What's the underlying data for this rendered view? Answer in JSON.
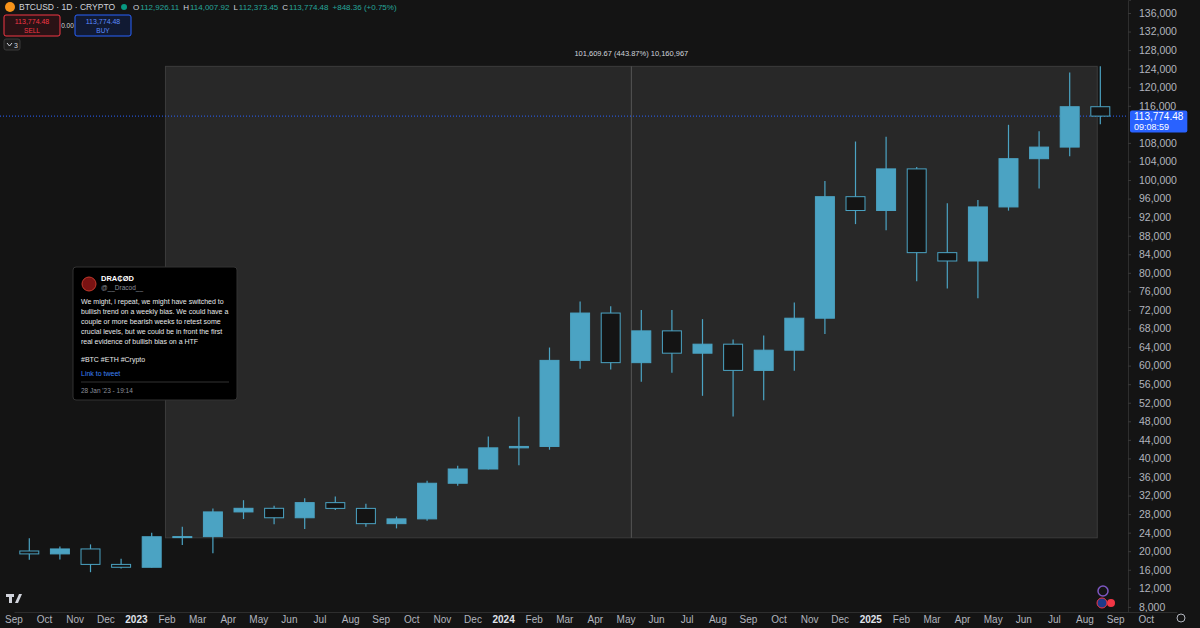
{
  "chart_data": {
    "type": "candlestick",
    "title": "BTCUSD · 1D · CRYPTO",
    "color": "#4ba3c3",
    "grid": false,
    "categories": [
      "Sep",
      "Oct",
      "Nov",
      "Dec",
      "2023",
      "Feb",
      "Mar",
      "Apr",
      "May",
      "Jun",
      "Jul",
      "Aug",
      "Sep",
      "Oct",
      "Nov",
      "Dec",
      "2024",
      "Feb",
      "Mar",
      "Apr",
      "May",
      "Jun",
      "Jul",
      "Aug",
      "Sep",
      "Oct",
      "Nov",
      "Dec",
      "2025",
      "Feb",
      "Mar",
      "Apr",
      "May",
      "Jun",
      "Jul",
      "Aug",
      "Sep",
      "Oct"
    ],
    "open": [
      20050,
      19420,
      20490,
      17160,
      16540,
      23120,
      23150,
      28470,
      29250,
      27210,
      30470,
      29230,
      25940,
      26970,
      34650,
      37720,
      42280,
      42580,
      61130,
      71330,
      60640,
      67490,
      62680,
      64620,
      58970,
      63330,
      70220,
      96410,
      93430,
      102400,
      84350,
      82550,
      94200,
      104600,
      107100,
      115800,
      null,
      null
    ],
    "high": [
      22800,
      20990,
      21470,
      18390,
      23960,
      25250,
      29190,
      31000,
      29820,
      31390,
      31810,
      30230,
      27480,
      35200,
      38430,
      44700,
      48970,
      63900,
      73800,
      72800,
      71980,
      71970,
      70020,
      65630,
      66500,
      73600,
      99800,
      108300,
      109350,
      102800,
      95000,
      95700,
      111900,
      110500,
      123200,
      124500.67,
      null,
      null
    ],
    "low": [
      18150,
      18190,
      15480,
      16260,
      16500,
      21350,
      19550,
      26940,
      25810,
      24800,
      28860,
      25300,
      24920,
      26560,
      34100,
      37620,
      38550,
      41880,
      59320,
      59190,
      56550,
      58440,
      53490,
      49050,
      52550,
      58870,
      66800,
      90500,
      89200,
      78200,
      76600,
      74500,
      93400,
      98200,
      105100,
      112000,
      null,
      null
    ],
    "close": [
      19420,
      20490,
      17160,
      16540,
      23120,
      23150,
      28470,
      29250,
      27210,
      30470,
      29230,
      25940,
      26970,
      34650,
      37720,
      42280,
      42580,
      61130,
      71330,
      60640,
      67490,
      62680,
      64620,
      58970,
      63330,
      70220,
      96410,
      93430,
      102400,
      84350,
      82550,
      94200,
      104600,
      107100,
      115800,
      113774.48,
      null,
      null
    ],
    "ylim": [
      6900,
      138800
    ],
    "yticks": [
      {
        "value": 8000,
        "label": "8,000"
      },
      {
        "value": 12000,
        "label": "12,000"
      },
      {
        "value": 16000,
        "label": "16,000"
      },
      {
        "value": 20000,
        "label": "20,000"
      },
      {
        "value": 24000,
        "label": "24,000"
      },
      {
        "value": 28000,
        "label": "28,000"
      },
      {
        "value": 32000,
        "label": "32,000"
      },
      {
        "value": 36000,
        "label": "36,000"
      },
      {
        "value": 40000,
        "label": "40,000"
      },
      {
        "value": 44000,
        "label": "44,000"
      },
      {
        "value": 48000,
        "label": "48,000"
      },
      {
        "value": 52000,
        "label": "52,000"
      },
      {
        "value": 56000,
        "label": "56,000"
      },
      {
        "value": 60000,
        "label": "60,000"
      },
      {
        "value": 64000,
        "label": "64,000"
      },
      {
        "value": 68000,
        "label": "68,000"
      },
      {
        "value": 72000,
        "label": "72,000"
      },
      {
        "value": 76000,
        "label": "76,000"
      },
      {
        "value": 80000,
        "label": "80,000"
      },
      {
        "value": 84000,
        "label": "84,000"
      },
      {
        "value": 88000,
        "label": "88,000"
      },
      {
        "value": 92000,
        "label": "92,000"
      },
      {
        "value": 96000,
        "label": "96,000"
      },
      {
        "value": 100000,
        "label": "100,000"
      },
      {
        "value": 104000,
        "label": "104,000"
      },
      {
        "value": 108000,
        "label": "108,000"
      },
      {
        "value": 116000,
        "label": "116,000"
      },
      {
        "value": 120000,
        "label": "120,000"
      },
      {
        "value": 124000,
        "label": "124,000"
      },
      {
        "value": 128000,
        "label": "128,000"
      },
      {
        "value": 132000,
        "label": "132,000"
      },
      {
        "value": 136000,
        "label": "136,000"
      }
    ],
    "current_price": {
      "value": 113774.48,
      "label": "113,774.48",
      "countdown": "09:08:59"
    },
    "measure": {
      "label": "101,609.67 (443.87%) 10,160,967",
      "from": 22891,
      "to": 124500.67,
      "span": [
        4,
        35
      ]
    }
  },
  "header": {
    "ohlc": [
      {
        "key": "O",
        "value": "112,926.11"
      },
      {
        "key": "H",
        "value": "114,007.92"
      },
      {
        "key": "L",
        "value": "112,373.45"
      },
      {
        "key": "C",
        "value": "113,774.48"
      }
    ],
    "change": "+848.36 (+0.75%)"
  },
  "order_panel": {
    "sell_price": "113,774.48",
    "sell": "SELL",
    "spread": "0.00",
    "buy_price": "113,774.48",
    "buy": "BUY"
  },
  "indicators": "3",
  "tweet": {
    "name": "DRA₵ØD",
    "handle": "@__Dracod__",
    "lines": [
      "We might, i repeat, we might have switched to",
      "bullish trend on a weekly bias. We could have a",
      "couple or more bearish weeks to retest some",
      "crucial levels, but we could be in front the first",
      "real evidence of bullish bias on a HTF"
    ],
    "hashtags": "#BTC #ETH #Crypto",
    "link": "Link to tweet",
    "date": "28 Jan '23 - 19:14"
  }
}
